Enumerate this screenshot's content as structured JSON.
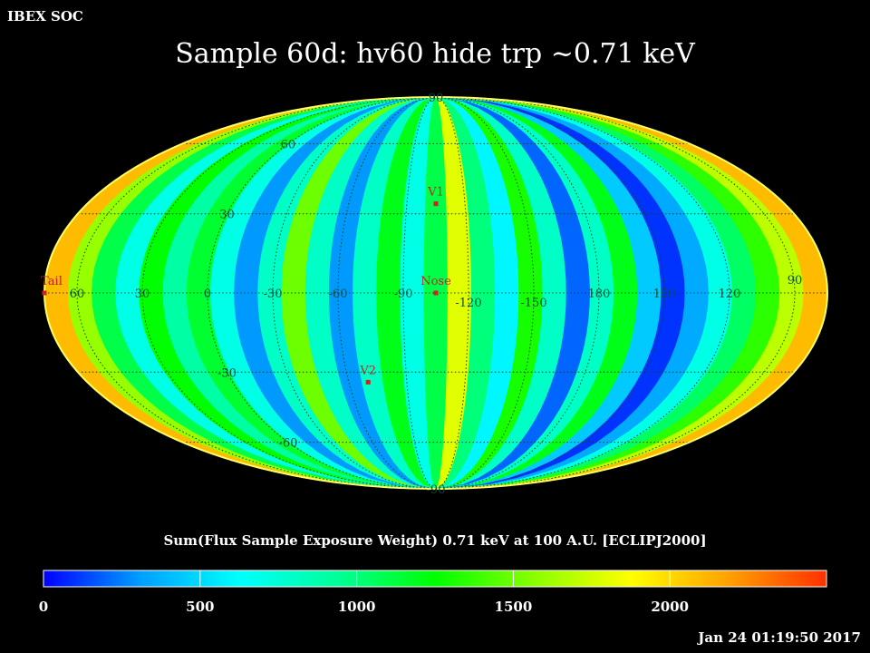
{
  "header_label": "IBEX SOC",
  "timestamp": "Jan 24 01:19:50 2017",
  "chart_data": {
    "type": "heatmap",
    "projection": "mollweide",
    "title": "Sample 60d: hv60 hide trp ~0.71 keV",
    "colorbar_label": "Sum(Flux Sample Exposure Weight)  0.71 keV at 100 A.U. [ECLIPJ2000]",
    "colorbar_range": [
      0,
      2500
    ],
    "colorbar_ticks": [
      "0",
      "500",
      "1000",
      "1500",
      "2000"
    ],
    "colorbar_ticks_values": [
      0,
      500,
      1000,
      1500,
      2000
    ],
    "colormap": [
      "#0000ff",
      "#00a0ff",
      "#00ffff",
      "#00ff99",
      "#00ff00",
      "#88ff00",
      "#ffff00",
      "#ffa000",
      "#ff3000"
    ],
    "longitude_labels": [
      "60",
      "30",
      "0",
      "-30",
      "-60",
      "-90",
      "-120",
      "-150",
      "180",
      "150",
      "120",
      "90"
    ],
    "longitude_label_values": [
      60,
      30,
      0,
      -30,
      -60,
      -90,
      -120,
      -150,
      180,
      150,
      120,
      90
    ],
    "latitude_labels": [
      "90",
      "60",
      "30",
      "-30",
      "-60",
      "-90"
    ],
    "latitude_label_values": [
      90,
      60,
      30,
      -30,
      -60,
      -90
    ],
    "markers": [
      {
        "name": "V1",
        "lon": -105,
        "lat": 34
      },
      {
        "name": "Nose",
        "lon": -105,
        "lat": 0
      },
      {
        "name": "V2",
        "lon": -70,
        "lat": -34
      },
      {
        "name": "Tail",
        "lon": 75,
        "lat": 0
      }
    ],
    "band_values": [
      2100,
      1600,
      1100,
      700,
      1250,
      900,
      1150,
      700,
      300,
      800,
      1500,
      800,
      300,
      800,
      1200,
      700,
      1100,
      1800,
      1000,
      600,
      1300,
      800,
      200,
      800,
      1200,
      450,
      100,
      350,
      700,
      1050,
      1350,
      1700,
      2100
    ],
    "grid": true
  }
}
